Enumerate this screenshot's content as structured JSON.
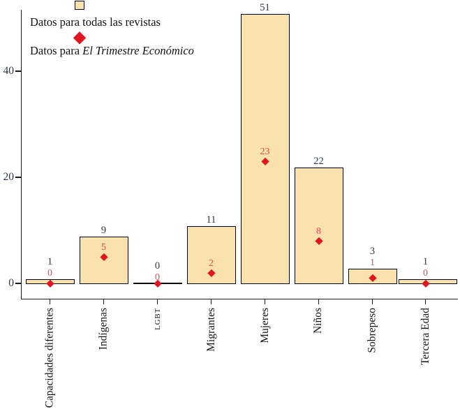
{
  "legend": {
    "bar_label": "Datos para todas las revistas",
    "point_label_prefix": "Datos para ",
    "point_label_italic": "El Trimestre Económico"
  },
  "colors": {
    "bar_fill": "#FAE2AE",
    "bar_border": "#000000",
    "diamond_red": "#E0151F",
    "point_label_red": "#E34850",
    "value_label_dark": "#2D3747",
    "axis": "#1A1A1A"
  },
  "y_axis": {
    "tick_labels": [
      "0",
      "20",
      "40"
    ],
    "tick_values": [
      0,
      20,
      40
    ]
  },
  "chart_data": {
    "type": "bar",
    "categories": [
      "Capacidades diferentes",
      "Indígenas",
      "LGBT",
      "Migrantes",
      "Mujeres",
      "Niños",
      "Sobrepeso",
      "Tercera Edad"
    ],
    "series": [
      {
        "name": "Datos para todas las revistas",
        "marker": "bar",
        "values": [
          1,
          9,
          0,
          11,
          51,
          22,
          3,
          1
        ]
      },
      {
        "name": "Datos para El Trimestre Económico",
        "marker": "diamond",
        "values": [
          0,
          5,
          0,
          2,
          23,
          8,
          1,
          0
        ]
      }
    ],
    "value_labels": true,
    "yticks": [
      0,
      20,
      40
    ],
    "ylim": [
      0,
      51.5
    ],
    "grid": false,
    "legend_position": "top-left",
    "xlabel": "",
    "ylabel": ""
  }
}
